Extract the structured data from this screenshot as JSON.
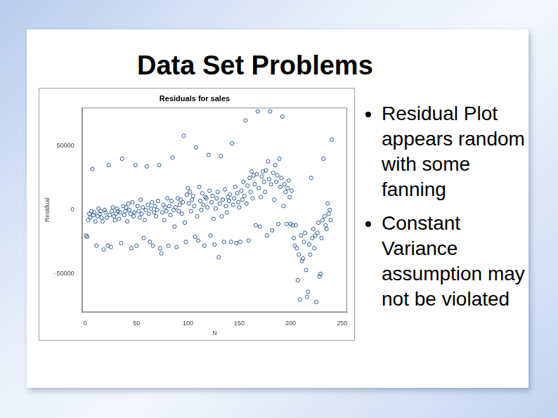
{
  "slide": {
    "title": "Data Set Problems",
    "bullets": [
      "Residual Plot appears random with some fanning",
      "Constant Variance assumption may not be violated"
    ]
  },
  "chart_data": {
    "type": "scatter",
    "title": "Residuals for sales",
    "x_label": "N",
    "y_label": "Residual",
    "x": [
      1,
      2,
      3,
      4,
      5,
      6,
      7,
      8,
      9,
      10,
      11,
      12,
      13,
      14,
      15,
      16,
      17,
      18,
      19,
      20,
      21,
      22,
      23,
      24,
      25,
      26,
      27,
      28,
      29,
      30,
      31,
      32,
      33,
      34,
      35,
      36,
      37,
      38,
      39,
      40,
      41,
      42,
      43,
      44,
      45,
      46,
      47,
      48,
      49,
      50,
      51,
      52,
      53,
      54,
      55,
      56,
      57,
      58,
      59,
      60,
      61,
      62,
      63,
      64,
      65,
      66,
      67,
      68,
      69,
      70,
      71,
      72,
      73,
      74,
      75,
      76,
      77,
      78,
      79,
      80,
      81,
      82,
      83,
      84,
      85,
      86,
      87,
      88,
      89,
      90,
      91,
      92,
      93,
      94,
      95,
      96,
      97,
      98,
      99,
      100,
      101,
      102,
      103,
      104,
      105,
      106,
      107,
      108,
      109,
      110,
      111,
      112,
      113,
      114,
      115,
      116,
      117,
      118,
      119,
      120,
      121,
      122,
      123,
      124,
      125,
      126,
      127,
      128,
      129,
      130,
      131,
      132,
      133,
      134,
      135,
      136,
      137,
      138,
      139,
      140,
      141,
      142,
      143,
      144,
      145,
      146,
      147,
      148,
      149,
      150,
      151,
      152,
      153,
      154,
      155,
      156,
      157,
      158,
      159,
      160,
      161,
      162,
      163,
      164,
      165,
      166,
      167,
      168,
      169,
      170,
      171,
      172,
      173,
      174,
      175,
      176,
      177,
      178,
      179,
      180,
      181,
      182,
      183,
      184,
      185,
      186,
      187,
      188,
      189,
      190,
      191,
      192,
      193,
      194,
      195,
      196,
      197,
      198,
      199,
      200,
      201,
      202,
      203,
      204,
      205,
      206,
      207,
      208,
      209,
      210,
      211,
      212,
      213,
      214,
      215,
      216,
      217,
      218,
      219,
      220,
      221,
      222,
      223,
      224,
      225,
      226,
      227,
      228,
      229,
      230,
      231,
      232,
      233,
      234,
      235,
      236,
      237,
      238,
      239,
      240
    ],
    "values": [
      -20000,
      -21000,
      -8000,
      -3000,
      -6000,
      -1000,
      32000,
      -4000,
      -2000,
      -9000,
      -28000,
      -5000,
      1000,
      -3000,
      -1000,
      -6000,
      -9000,
      -31000,
      0,
      -2000,
      -6000,
      -28000,
      35000,
      -4000,
      -29000,
      -1000,
      2000,
      -5000,
      -8000,
      -3000,
      1000,
      -1000,
      -7000,
      -2000,
      -26000,
      40000,
      3000,
      -4000,
      -1000,
      2000,
      -9000,
      5000,
      0,
      -3000,
      -30000,
      6000,
      -5000,
      -2000,
      35000,
      -28000,
      3000,
      -1000,
      -6000,
      8000,
      -3000,
      2000,
      -22000,
      -8000,
      0,
      34000,
      4000,
      -3000,
      -25000,
      1000,
      6000,
      -28000,
      -2000,
      3000,
      -5000,
      0,
      7000,
      35000,
      -30000,
      -34000,
      -2000,
      4000,
      -8000,
      2000,
      -1000,
      9000,
      -28000,
      3000,
      -4000,
      7000,
      41000,
      0,
      -13000,
      2000,
      -29000,
      9000,
      -1000,
      4000,
      8000,
      -3000,
      6000,
      58000,
      -10000,
      -25000,
      12000,
      17000,
      5000,
      14000,
      -1000,
      8000,
      11000,
      3000,
      -21000,
      49000,
      -5000,
      -24000,
      18000,
      7000,
      0,
      13000,
      4000,
      -28000,
      10000,
      9000,
      2000,
      43000,
      15000,
      -20000,
      6000,
      11000,
      -7000,
      -27000,
      1000,
      9000,
      14000,
      -37000,
      5000,
      42000,
      -5000,
      8000,
      -25000,
      16000,
      3000,
      -2000,
      10000,
      7000,
      12000,
      -25000,
      52000,
      4000,
      9000,
      18000,
      -26000,
      13000,
      6000,
      2000,
      -25000,
      15000,
      8000,
      22000,
      11000,
      70000,
      5000,
      19000,
      -24000,
      25000,
      14000,
      30000,
      9000,
      27000,
      20000,
      -12000,
      28000,
      77000,
      17000,
      -13000,
      10000,
      26000,
      30000,
      22000,
      14000,
      31000,
      -20000,
      38000,
      24000,
      77000,
      20000,
      -16000,
      29000,
      8000,
      35000,
      22000,
      27000,
      -11000,
      40000,
      18000,
      25000,
      73000,
      3000,
      20000,
      14000,
      -11000,
      17000,
      23000,
      10000,
      -11000,
      15000,
      -12000,
      -22000,
      -28000,
      -12000,
      -30000,
      -55000,
      -35000,
      -70000,
      -20000,
      -40000,
      -38000,
      -25000,
      -18000,
      -47000,
      -68000,
      -64000,
      -27000,
      -35000,
      25000,
      -22000,
      -15000,
      -30000,
      -20000,
      -72000,
      -18000,
      -10000,
      -52000,
      -50000,
      -22000,
      -8000,
      40000,
      -5000,
      -12000,
      -15000,
      5000,
      -3000,
      0,
      -8000,
      55000
    ],
    "color": "#2a5a9a",
    "marker": "circle",
    "xlim": [
      -3,
      255
    ],
    "ylim": [
      -80000,
      80000
    ],
    "xticks": [
      0,
      50,
      100,
      150,
      200,
      250
    ],
    "yticks": [
      -50000,
      0,
      50000
    ],
    "grid": false
  }
}
